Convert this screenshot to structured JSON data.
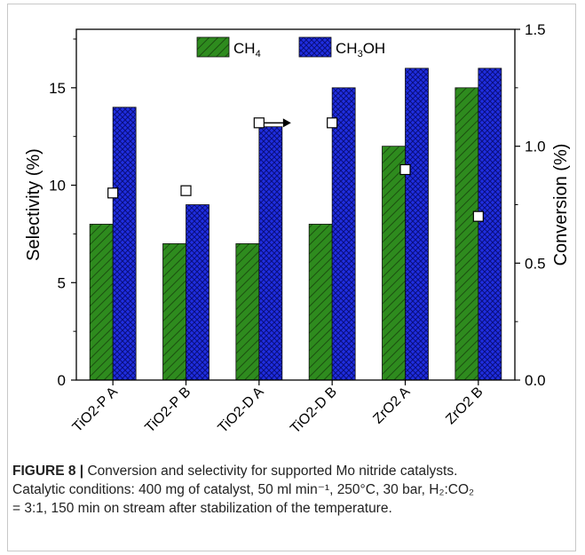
{
  "chart_data": {
    "type": "bar",
    "categories": [
      "TiO2-P A",
      "TiO2-P B",
      "TiO2-D A",
      "TiO2-D B",
      "ZrO2 A",
      "ZrO2 B"
    ],
    "series": [
      {
        "name": "CH4",
        "label_main": "CH",
        "label_sub": "4",
        "label_tail": "",
        "color": "#2e8b1e",
        "hatch": "diagonal",
        "axis": "left",
        "values": [
          8,
          7,
          7,
          8,
          12,
          15
        ]
      },
      {
        "name": "CH3OH",
        "label_main": "CH",
        "label_sub": "3",
        "label_tail": "OH",
        "color": "#1f2ee0",
        "hatch": "crosshatch",
        "axis": "left",
        "values": [
          14,
          9,
          13,
          15,
          16,
          16
        ]
      }
    ],
    "conversion": {
      "axis": "right",
      "marker": "open-square",
      "values": [
        0.8,
        0.81,
        1.1,
        1.1,
        0.9,
        0.7
      ]
    },
    "arrow_annotation": {
      "category_index": 2,
      "direction": "right"
    },
    "ylabel": "Selectivity (%)",
    "y2label": "Conversion (%)",
    "ylim": [
      0,
      18
    ],
    "y2lim": [
      0,
      1.5
    ],
    "yticks": [
      "0",
      "5",
      "10",
      "15"
    ],
    "y2ticks": [
      "0.0",
      "0.5",
      "1.0",
      "1.5"
    ],
    "legend_position": "top-center"
  },
  "caption": {
    "label": "FIGURE 8 |",
    "line1": "Conversion and selectivity for supported Mo nitride catalysts.",
    "line2": "Catalytic conditions: 400 mg of catalyst, 50 ml min⁻¹, 250°C, 30 bar, H₂:CO₂",
    "line3": "= 3:1, 150 min on stream after stabilization of the temperature."
  }
}
